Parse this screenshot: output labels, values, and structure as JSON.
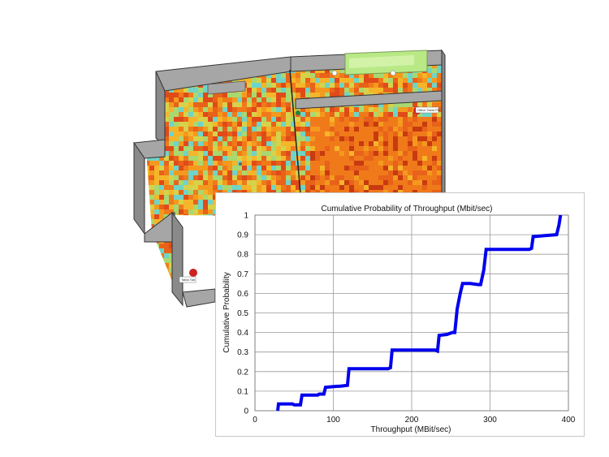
{
  "floorplan": {
    "ap_labels": [
      "Office Tabla Pin",
      "Tabla Tab"
    ],
    "colors": {
      "wall_top": "#a6a6a6",
      "wall_side": "#8a8a8a",
      "outline": "#333333",
      "room": "#b8e986"
    }
  },
  "chart_data": {
    "type": "line",
    "title": "Cumulative Probability of Throughput (Mbit/sec)",
    "xlabel": "Throughput (MBit/sec)",
    "ylabel": "Cumulative Probability",
    "xlim": [
      0,
      400
    ],
    "ylim": [
      0,
      1
    ],
    "x_ticks": [
      "0",
      "100",
      "200",
      "300",
      "400"
    ],
    "y_ticks": [
      "0",
      "0.1",
      "0.2",
      "0.3",
      "0.4",
      "0.5",
      "0.6",
      "0.7",
      "0.8",
      "0.9",
      "1"
    ],
    "grid": true,
    "color": "#0000ee",
    "series": [
      {
        "x": [
          29,
          30,
          48,
          50,
          58,
          60,
          80,
          82,
          88,
          90,
          105,
          108,
          118,
          120,
          160,
          170,
          173,
          175,
          215,
          230,
          233,
          235,
          245,
          252,
          255,
          258,
          262,
          265,
          275,
          285,
          288,
          292,
          295,
          320,
          350,
          353,
          355,
          370,
          385,
          388,
          390
        ],
        "y": [
          0,
          0.035,
          0.035,
          0.03,
          0.03,
          0.08,
          0.08,
          0.085,
          0.085,
          0.12,
          0.125,
          0.125,
          0.13,
          0.215,
          0.215,
          0.215,
          0.22,
          0.31,
          0.31,
          0.31,
          0.305,
          0.385,
          0.39,
          0.4,
          0.4,
          0.52,
          0.6,
          0.65,
          0.65,
          0.645,
          0.645,
          0.72,
          0.825,
          0.825,
          0.825,
          0.83,
          0.89,
          0.895,
          0.9,
          0.95,
          1.0
        ]
      }
    ]
  }
}
